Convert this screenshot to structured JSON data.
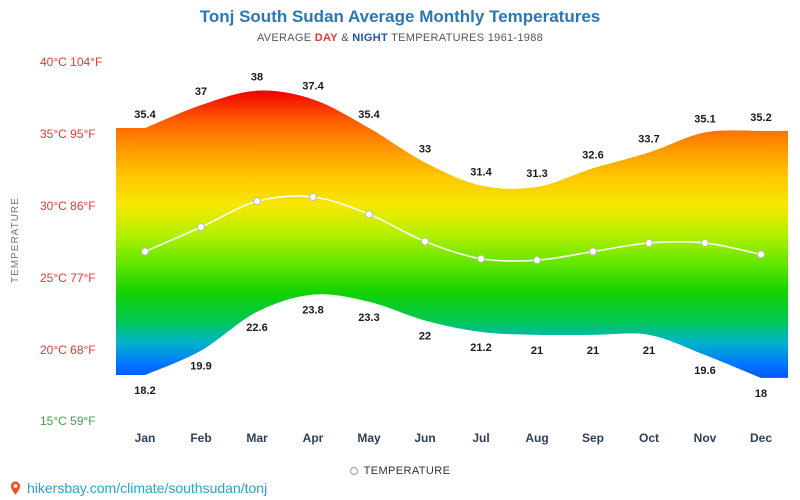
{
  "title": "Tonj South Sudan Average Monthly Temperatures",
  "subtitle": {
    "prefix": "AVERAGE",
    "day": "DAY",
    "amp": "&",
    "night": "NIGHT",
    "suffix": "TEMPERATURES 1961-1988"
  },
  "y_axis": {
    "title": "TEMPERATURE",
    "labels": [
      {
        "text": "40°C 104°F",
        "color": "#e53935"
      },
      {
        "text": "35°C 95°F",
        "color": "#e53935"
      },
      {
        "text": "30°C 86°F",
        "color": "#e53935"
      },
      {
        "text": "25°C 77°F",
        "color": "#e53935"
      },
      {
        "text": "20°C 68°F",
        "color": "#e53935"
      },
      {
        "text": "15°C 59°F",
        "color": "#43a047"
      }
    ]
  },
  "legend": {
    "label": "TEMPERATURE"
  },
  "footer": {
    "url": "hikersbay.com/climate/southsudan/tonj",
    "pin_icon": "location-pin"
  },
  "colors": {
    "title_blue": "#2b77b3",
    "day_red": "#e53935",
    "night_blue": "#1a56b0",
    "axis_green": "#43a047",
    "month_navy": "#2f3d5c",
    "url_cyan": "#2aa0d0"
  },
  "chart_data": {
    "type": "area",
    "title": "Tonj South Sudan Average Monthly Temperatures",
    "subtitle": "AVERAGE DAY & NIGHT TEMPERATURES 1961-1988",
    "categories": [
      "Jan",
      "Feb",
      "Mar",
      "Apr",
      "May",
      "Jun",
      "Jul",
      "Aug",
      "Sep",
      "Oct",
      "Nov",
      "Dec"
    ],
    "series": [
      {
        "name": "DAY",
        "values": [
          35.4,
          37,
          38,
          37.4,
          35.4,
          33,
          31.4,
          31.3,
          32.6,
          33.7,
          35.1,
          35.2
        ]
      },
      {
        "name": "NIGHT",
        "values": [
          18.2,
          19.9,
          22.6,
          23.8,
          23.3,
          22,
          21.2,
          21,
          21,
          21,
          19.6,
          18
        ]
      },
      {
        "name": "AVERAGE",
        "values": [
          26.8,
          28.5,
          30.3,
          30.6,
          29.4,
          27.5,
          26.3,
          26.2,
          26.8,
          27.4,
          27.4,
          26.6
        ]
      }
    ],
    "ylabel": "TEMPERATURE",
    "ylim": [
      15,
      40
    ],
    "y_ticks_c": [
      40,
      35,
      30,
      25,
      20,
      15
    ],
    "y_ticks_f": [
      104,
      95,
      86,
      77,
      68,
      59
    ],
    "grid": false,
    "legend_position": "bottom",
    "gradient": [
      {
        "t": 40,
        "color": "#c80000"
      },
      {
        "t": 38,
        "color": "#f00000"
      },
      {
        "t": 36,
        "color": "#ff5a00"
      },
      {
        "t": 34,
        "color": "#ff9600"
      },
      {
        "t": 32,
        "color": "#ffc800"
      },
      {
        "t": 30,
        "color": "#f5e800"
      },
      {
        "t": 28,
        "color": "#b4f000"
      },
      {
        "t": 26,
        "color": "#64e600"
      },
      {
        "t": 24,
        "color": "#14d200"
      },
      {
        "t": 22,
        "color": "#00c850"
      },
      {
        "t": 20.5,
        "color": "#00b4c8"
      },
      {
        "t": 19,
        "color": "#0078ff"
      },
      {
        "t": 17,
        "color": "#0032ff"
      },
      {
        "t": 15,
        "color": "#0014c8"
      }
    ]
  }
}
